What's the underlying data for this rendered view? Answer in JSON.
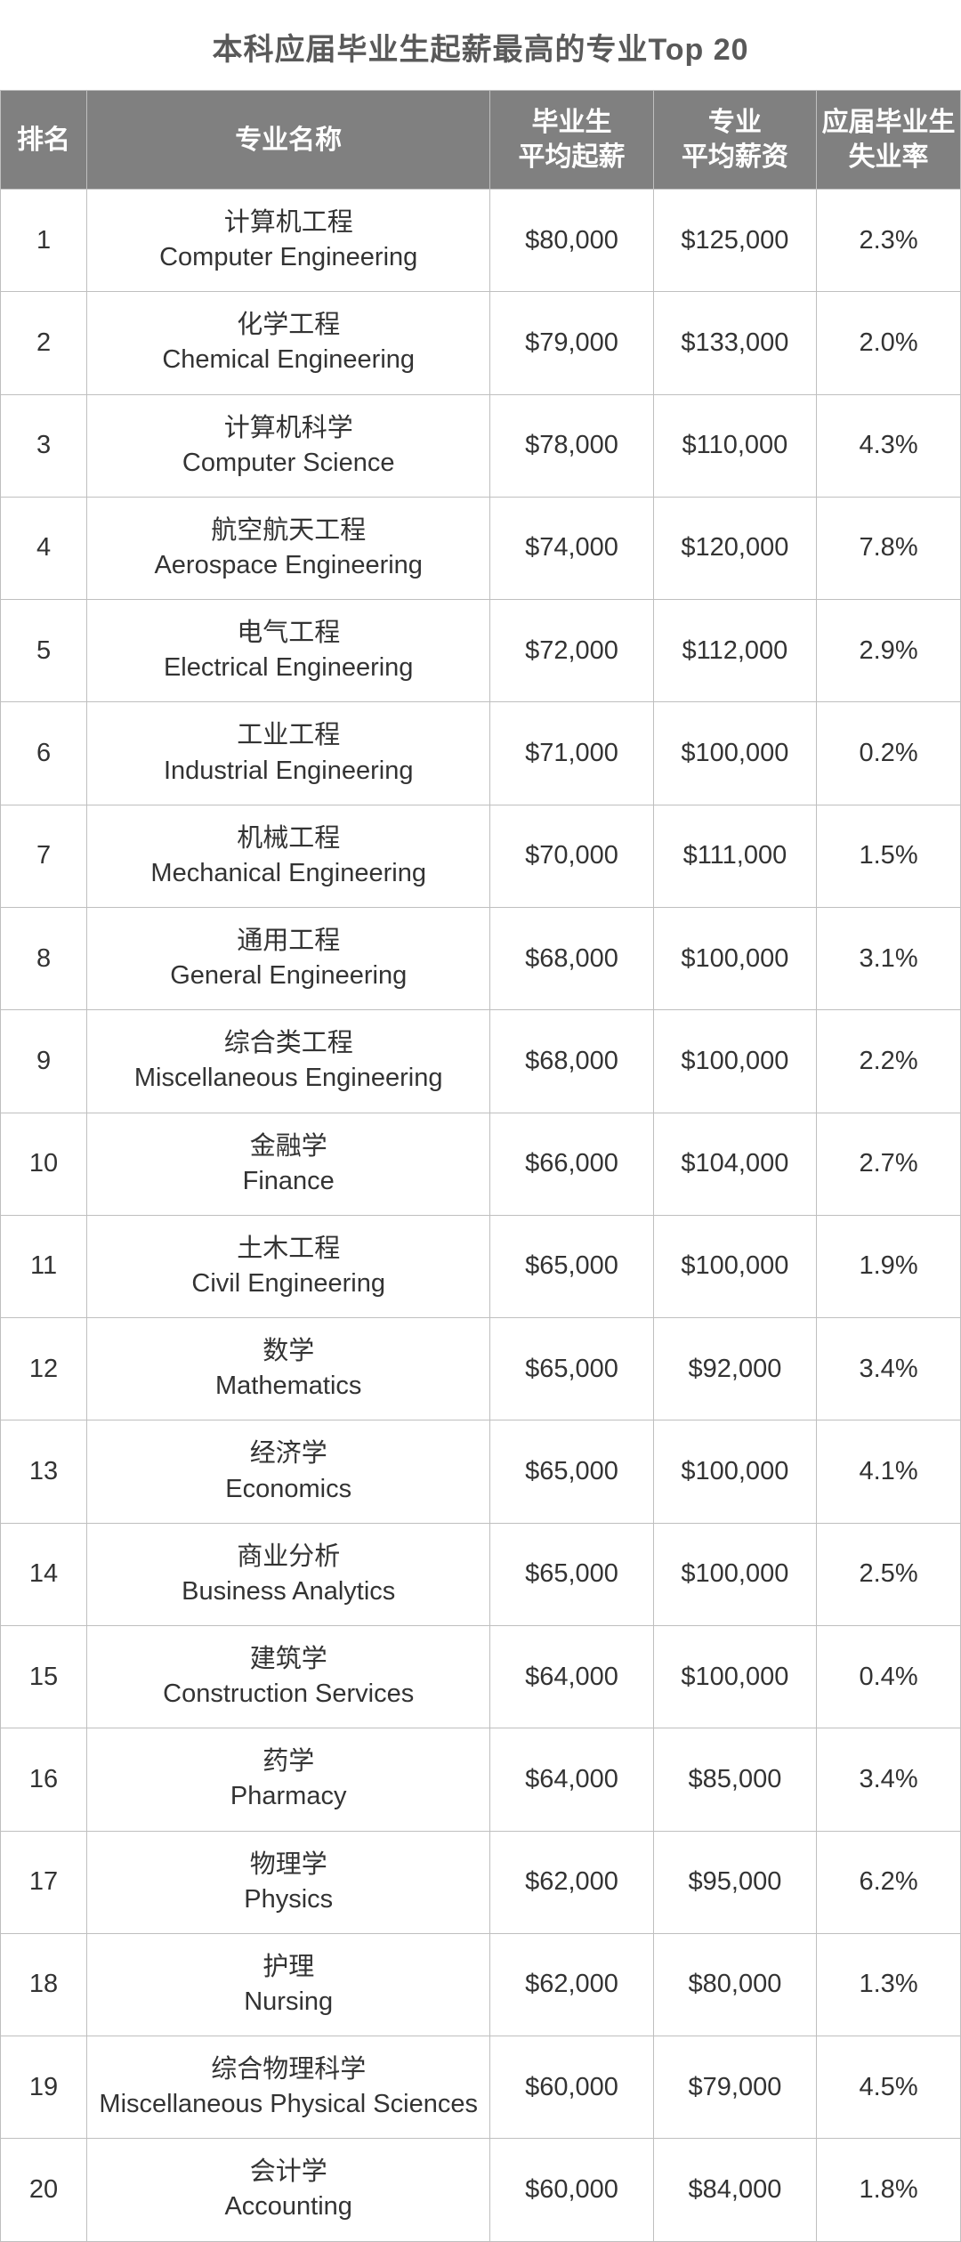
{
  "title": "本科应届毕业生起薪最高的专业Top 20",
  "table": {
    "type": "table",
    "background_color": "#ffffff",
    "header_bg_color": "#808080",
    "header_text_color": "#ffffff",
    "border_color": "#bfbfbf",
    "body_text_color": "#333333",
    "title_color": "#595959",
    "title_fontsize": 34,
    "header_fontsize": 30,
    "body_fontsize": 29,
    "columns": [
      {
        "key": "rank",
        "line1": "排名",
        "line2": ""
      },
      {
        "key": "major",
        "line1": "专业名称",
        "line2": ""
      },
      {
        "key": "start",
        "line1": "毕业生",
        "line2": "平均起薪"
      },
      {
        "key": "avg",
        "line1": "专业",
        "line2": "平均薪资"
      },
      {
        "key": "unemp",
        "line1": "应届毕业生",
        "line2": "失业率"
      }
    ],
    "rows": [
      {
        "rank": "1",
        "major_cn": "计算机工程",
        "major_en": "Computer Engineering",
        "start": "$80,000",
        "avg": "$125,000",
        "unemp": "2.3%"
      },
      {
        "rank": "2",
        "major_cn": "化学工程",
        "major_en": "Chemical Engineering",
        "start": "$79,000",
        "avg": "$133,000",
        "unemp": "2.0%"
      },
      {
        "rank": "3",
        "major_cn": "计算机科学",
        "major_en": "Computer Science",
        "start": "$78,000",
        "avg": "$110,000",
        "unemp": "4.3%"
      },
      {
        "rank": "4",
        "major_cn": "航空航天工程",
        "major_en": "Aerospace Engineering",
        "start": "$74,000",
        "avg": "$120,000",
        "unemp": "7.8%"
      },
      {
        "rank": "5",
        "major_cn": "电气工程",
        "major_en": "Electrical Engineering",
        "start": "$72,000",
        "avg": "$112,000",
        "unemp": "2.9%"
      },
      {
        "rank": "6",
        "major_cn": "工业工程",
        "major_en": "Industrial Engineering",
        "start": "$71,000",
        "avg": "$100,000",
        "unemp": "0.2%"
      },
      {
        "rank": "7",
        "major_cn": "机械工程",
        "major_en": "Mechanical Engineering",
        "start": "$70,000",
        "avg": "$111,000",
        "unemp": "1.5%"
      },
      {
        "rank": "8",
        "major_cn": "通用工程",
        "major_en": "General Engineering",
        "start": "$68,000",
        "avg": "$100,000",
        "unemp": "3.1%"
      },
      {
        "rank": "9",
        "major_cn": "综合类工程",
        "major_en": "Miscellaneous Engineering",
        "start": "$68,000",
        "avg": "$100,000",
        "unemp": "2.2%"
      },
      {
        "rank": "10",
        "major_cn": "金融学",
        "major_en": "Finance",
        "start": "$66,000",
        "avg": "$104,000",
        "unemp": "2.7%"
      },
      {
        "rank": "11",
        "major_cn": "土木工程",
        "major_en": "Civil Engineering",
        "start": "$65,000",
        "avg": "$100,000",
        "unemp": "1.9%"
      },
      {
        "rank": "12",
        "major_cn": "数学",
        "major_en": "Mathematics",
        "start": "$65,000",
        "avg": "$92,000",
        "unemp": "3.4%"
      },
      {
        "rank": "13",
        "major_cn": "经济学",
        "major_en": "Economics",
        "start": "$65,000",
        "avg": "$100,000",
        "unemp": "4.1%"
      },
      {
        "rank": "14",
        "major_cn": "商业分析",
        "major_en": "Business Analytics",
        "start": "$65,000",
        "avg": "$100,000",
        "unemp": "2.5%"
      },
      {
        "rank": "15",
        "major_cn": "建筑学",
        "major_en": "Construction Services",
        "start": "$64,000",
        "avg": "$100,000",
        "unemp": "0.4%"
      },
      {
        "rank": "16",
        "major_cn": "药学",
        "major_en": "Pharmacy",
        "start": "$64,000",
        "avg": "$85,000",
        "unemp": "3.4%"
      },
      {
        "rank": "17",
        "major_cn": "物理学",
        "major_en": "Physics",
        "start": "$62,000",
        "avg": "$95,000",
        "unemp": "6.2%"
      },
      {
        "rank": "18",
        "major_cn": "护理",
        "major_en": "Nursing",
        "start": "$62,000",
        "avg": "$80,000",
        "unemp": "1.3%"
      },
      {
        "rank": "19",
        "major_cn": "综合物理科学",
        "major_en": "Miscellaneous Physical Sciences",
        "start": "$60,000",
        "avg": "$79,000",
        "unemp": "4.5%"
      },
      {
        "rank": "20",
        "major_cn": "会计学",
        "major_en": "Accounting",
        "start": "$60,000",
        "avg": "$84,000",
        "unemp": "1.8%"
      }
    ]
  }
}
